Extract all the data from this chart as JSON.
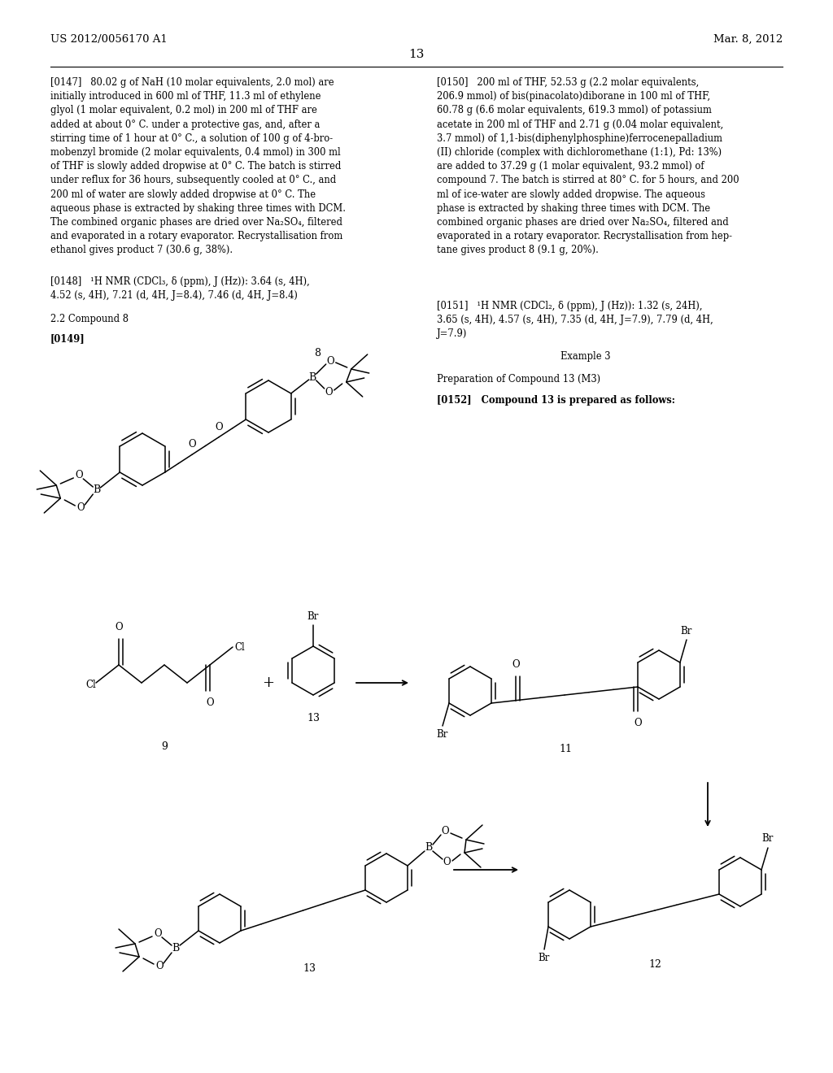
{
  "header_left": "US 2012/0056170 A1",
  "header_right": "Mar. 8, 2012",
  "page_number": "13",
  "bg_color": "#ffffff",
  "p147": "[0147]   80.02 g of NaH (10 molar equivalents, 2.0 mol) are\ninitially introduced in 600 ml of THF, 11.3 ml of ethylene\nglyol (1 molar equivalent, 0.2 mol) in 200 ml of THF are\nadded at about 0° C. under a protective gas, and, after a\nstirring time of 1 hour at 0° C., a solution of 100 g of 4-bro-\nmobenzyl bromide (2 molar equivalents, 0.4 mmol) in 300 ml\nof THF is slowly added dropwise at 0° C. The batch is stirred\nunder reflux for 36 hours, subsequently cooled at 0° C., and\n200 ml of water are slowly added dropwise at 0° C. The\naqueous phase is extracted by shaking three times with DCM.\nThe combined organic phases are dried over Na₂SO₄, filtered\nand evaporated in a rotary evaporator. Recrystallisation from\nethanol gives product 7 (30.6 g, 38%).",
  "p148": "[0148]   ¹H NMR (CDCl₃, δ (ppm), J (Hz)): 3.64 (s, 4H),\n4.52 (s, 4H), 7.21 (d, 4H, J=8.4), 7.46 (d, 4H, J=8.4)",
  "p22": "2.2 Compound 8",
  "p149": "[0149]",
  "p150": "[0150]   200 ml of THF, 52.53 g (2.2 molar equivalents,\n206.9 mmol) of bis(pinacolato)diborane in 100 ml of THF,\n60.78 g (6.6 molar equivalents, 619.3 mmol) of potassium\nacetate in 200 ml of THF and 2.71 g (0.04 molar equivalent,\n3.7 mmol) of 1,1-bis(diphenylphosphine)ferrocenepalladium\n(II) chloride (complex with dichloromethane (1:1), Pd: 13%)\nare added to 37.29 g (1 molar equivalent, 93.2 mmol) of\ncompound 7. The batch is stirred at 80° C. for 5 hours, and 200\nml of ice-water are slowly added dropwise. The aqueous\nphase is extracted by shaking three times with DCM. The\ncombined organic phases are dried over Na₂SO₄, filtered and\nevaporated in a rotary evaporator. Recrystallisation from hep-\ntane gives product 8 (9.1 g, 20%).",
  "p151": "[0151]   ¹H NMR (CDCl₂, δ (ppm), J (Hz)): 1.32 (s, 24H),\n3.65 (s, 4H), 4.57 (s, 4H), 7.35 (d, 4H, J=7.9), 7.79 (d, 4H,\nJ=7.9)",
  "ex3": "Example 3",
  "ex3_prep": "Preparation of Compound 13 (M3)",
  "p152": "[0152]   Compound 13 is prepared as follows:"
}
